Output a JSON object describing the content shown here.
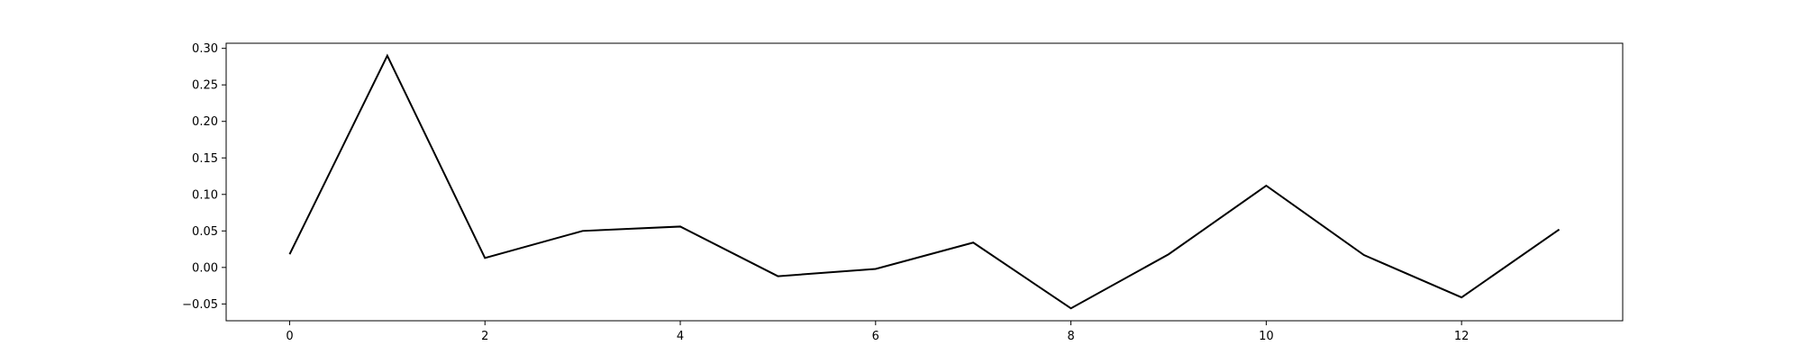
{
  "chart_data": {
    "type": "line",
    "title": "",
    "xlabel": "",
    "ylabel": "",
    "x": [
      0,
      1,
      2,
      3,
      4,
      5,
      6,
      7,
      8,
      9,
      10,
      11,
      12,
      13
    ],
    "series": [
      {
        "values": [
          0.018,
          0.29,
          0.013,
          0.05,
          0.056,
          -0.012,
          -0.002,
          0.034,
          -0.056,
          0.018,
          0.112,
          0.017,
          -0.041,
          0.052
        ]
      }
    ],
    "xlim": [
      -0.65,
      13.65
    ],
    "ylim": [
      -0.073,
      0.307
    ],
    "xticks": [
      0,
      2,
      4,
      6,
      8,
      10,
      12
    ],
    "xtick_labels": [
      "0",
      "2",
      "4",
      "6",
      "8",
      "10",
      "12"
    ],
    "yticks": [
      -0.05,
      0.0,
      0.05,
      0.1,
      0.15,
      0.2,
      0.25,
      0.3
    ],
    "ytick_labels": [
      "−0.05",
      "0.00",
      "0.05",
      "0.10",
      "0.15",
      "0.20",
      "0.25",
      "0.30"
    ],
    "grid": false,
    "line_color": "#000000"
  }
}
